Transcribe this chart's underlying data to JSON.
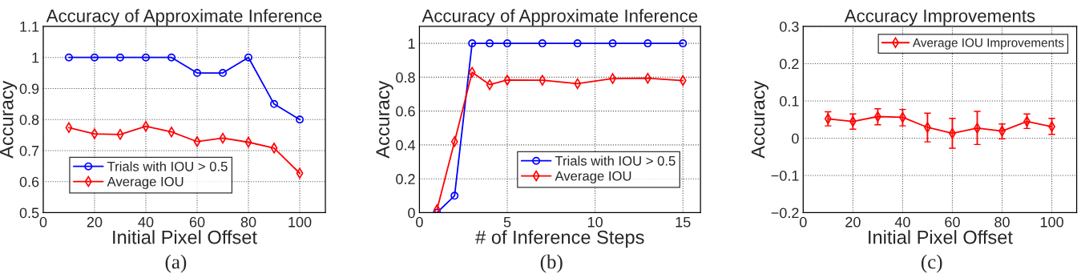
{
  "chart_data": [
    {
      "type": "line",
      "title": "Accuracy of Approximate Inference",
      "xlabel": "Initial Pixel Offset",
      "ylabel": "Accuracy",
      "annotations": [
        "(a)"
      ],
      "x": [
        10,
        20,
        30,
        40,
        50,
        60,
        70,
        80,
        90,
        100
      ],
      "series": [
        {
          "name": "Trials with IOU > 0.5",
          "color": "#0000ff",
          "marker": "circle",
          "values": [
            1,
            1,
            1,
            1,
            1,
            0.95,
            0.95,
            1,
            0.85,
            0.8
          ]
        },
        {
          "name": "Average IOU",
          "color": "#ff0000",
          "marker": "diamond",
          "values": [
            0.774,
            0.754,
            0.752,
            0.778,
            0.76,
            0.729,
            0.74,
            0.727,
            0.708,
            0.627
          ]
        }
      ],
      "xlim": [
        0,
        110
      ],
      "xticks": [
        0,
        20,
        40,
        60,
        80,
        100
      ],
      "ylim": [
        0.5,
        1.1
      ],
      "yticks": [
        0.5,
        0.6,
        0.7,
        0.8,
        0.9,
        1,
        1.1
      ],
      "grid": true,
      "legend": "bottom left",
      "line_style": "solid"
    },
    {
      "type": "line",
      "title": "Accuracy of Approximate Inference",
      "xlabel": "# of Inference Steps",
      "ylabel": "Accuracy",
      "annotations": [
        "(b)"
      ],
      "x": [
        1,
        2,
        3,
        4,
        5,
        7,
        9,
        11,
        13,
        15
      ],
      "series": [
        {
          "name": "Trials with IOU > 0.5",
          "color": "#0000ff",
          "marker": "circle",
          "values": [
            0,
            0.1,
            1,
            1,
            1,
            1,
            1,
            1,
            1,
            1
          ]
        },
        {
          "name": "Average IOU",
          "color": "#ff0000",
          "marker": "diamond",
          "values": [
            0.018,
            0.42,
            0.829,
            0.756,
            0.783,
            0.782,
            0.762,
            0.792,
            0.794,
            0.78
          ]
        }
      ],
      "xlim": [
        0,
        16
      ],
      "xticks": [
        0,
        5,
        10,
        15
      ],
      "ylim": [
        0,
        1.1
      ],
      "yticks": [
        0,
        0.2,
        0.4,
        0.6,
        0.8,
        1
      ],
      "grid": true,
      "legend": "bottom right",
      "line_style": "solid"
    },
    {
      "type": "line",
      "title": "Accuracy Improvements",
      "xlabel": "Initial Pixel Offset",
      "ylabel": "Accuracy",
      "annotations": [
        "(c)"
      ],
      "x": [
        10,
        20,
        30,
        40,
        50,
        60,
        70,
        80,
        90,
        100
      ],
      "series": [
        {
          "name": "Average IOU Improvements",
          "color": "#ff0000",
          "marker": "diamond",
          "values": [
            0.052,
            0.045,
            0.058,
            0.056,
            0.029,
            0.013,
            0.027,
            0.019,
            0.045,
            0.031
          ],
          "errors": [
            [
              0.033,
              0.071
            ],
            [
              0.024,
              0.065
            ],
            [
              0.036,
              0.079
            ],
            [
              0.033,
              0.077
            ],
            [
              -0.01,
              0.067
            ],
            [
              -0.027,
              0.053
            ],
            [
              -0.017,
              0.072
            ],
            [
              -0.002,
              0.038
            ],
            [
              0.026,
              0.065
            ],
            [
              0.01,
              0.053
            ]
          ]
        }
      ],
      "xlim": [
        0,
        110
      ],
      "xticks": [
        0,
        20,
        40,
        60,
        80,
        100
      ],
      "ylim": [
        -0.2,
        0.3
      ],
      "yticks": [
        {
          "value": -0.2,
          "label": "−0.2"
        },
        {
          "value": -0.1,
          "label": "−0.1"
        },
        0,
        0.1,
        0.2,
        0.3
      ],
      "grid": true,
      "legend": "top right",
      "line_style": "solid"
    }
  ]
}
